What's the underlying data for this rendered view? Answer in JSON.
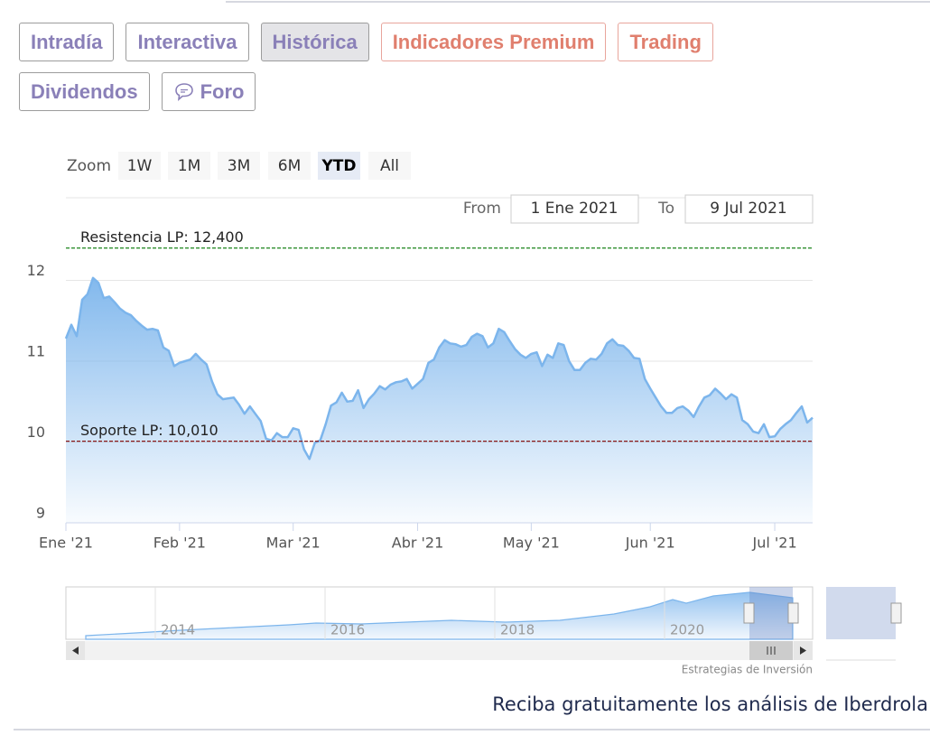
{
  "tabs": [
    {
      "label": "Intradía",
      "variant": "default"
    },
    {
      "label": "Interactiva",
      "variant": "default"
    },
    {
      "label": "Histórica",
      "variant": "active"
    },
    {
      "label": "Indicadores Premium",
      "variant": "premium"
    },
    {
      "label": "Trading",
      "variant": "premium"
    },
    {
      "label": "Dividendos",
      "variant": "default"
    },
    {
      "label": "Foro",
      "variant": "default",
      "icon": "chat"
    }
  ],
  "zoom": {
    "label": "Zoom",
    "buttons": [
      "1W",
      "1M",
      "3M",
      "6M",
      "YTD",
      "All"
    ],
    "selected": 4
  },
  "range": {
    "from_label": "From",
    "from": "1 Ene 2021",
    "to_label": "To",
    "to": "9 Jul 2021"
  },
  "chart_data": {
    "type": "area",
    "categories": [
      "Ene '21",
      null,
      null,
      null,
      null,
      null,
      null,
      null,
      null,
      null,
      null,
      null,
      null,
      null,
      null,
      null,
      null,
      null,
      null,
      null,
      null,
      "Feb '21",
      null,
      null,
      null,
      null,
      null,
      null,
      null,
      null,
      null,
      null,
      null,
      null,
      null,
      null,
      null,
      null,
      null,
      null,
      null,
      null,
      "Mar '21",
      null,
      null,
      null,
      null,
      null,
      null,
      null,
      null,
      null,
      null,
      null,
      null,
      null,
      null,
      null,
      null,
      null,
      null,
      null,
      null,
      null,
      null,
      "Abr '21",
      null,
      null,
      null,
      null,
      null,
      null,
      null,
      null,
      null,
      null,
      null,
      null,
      null,
      null,
      null,
      null,
      null,
      null,
      null,
      null,
      "May '21",
      null,
      null,
      null,
      null,
      null,
      null,
      null,
      null,
      null,
      null,
      null,
      null,
      null,
      null,
      null,
      null,
      null,
      null,
      null,
      null,
      null,
      "Jun '21",
      null,
      null,
      null,
      null,
      null,
      null,
      null,
      null,
      null,
      null,
      null,
      null,
      null,
      null,
      null,
      null,
      null,
      null,
      null,
      null,
      null,
      null,
      "Jul '21",
      null,
      null,
      null,
      null,
      null,
      null,
      null
    ],
    "values": [
      11.28,
      11.45,
      11.31,
      11.76,
      11.83,
      12.03,
      11.97,
      11.78,
      11.8,
      11.73,
      11.65,
      11.6,
      11.57,
      11.5,
      11.44,
      11.39,
      11.4,
      11.38,
      11.17,
      11.13,
      10.94,
      10.98,
      11.0,
      11.02,
      11.09,
      11.02,
      10.96,
      10.75,
      10.59,
      10.53,
      10.54,
      10.55,
      10.46,
      10.35,
      10.44,
      10.35,
      10.26,
      10.04,
      10.02,
      10.11,
      10.06,
      10.06,
      10.17,
      10.15,
      9.91,
      9.79,
      9.99,
      10.02,
      10.22,
      10.45,
      10.49,
      10.61,
      10.5,
      10.51,
      10.64,
      10.42,
      10.53,
      10.6,
      10.69,
      10.65,
      10.71,
      10.74,
      10.75,
      10.78,
      10.66,
      10.72,
      10.78,
      10.98,
      11.02,
      11.17,
      11.26,
      11.22,
      11.21,
      11.18,
      11.2,
      11.3,
      11.34,
      11.31,
      11.17,
      11.22,
      11.4,
      11.36,
      11.25,
      11.15,
      11.08,
      11.04,
      11.09,
      11.11,
      10.94,
      11.08,
      11.04,
      11.22,
      11.2,
      11.0,
      10.89,
      10.89,
      10.98,
      11.03,
      11.02,
      11.09,
      11.22,
      11.27,
      11.2,
      11.19,
      11.13,
      11.04,
      11.03,
      10.78,
      10.66,
      10.55,
      10.44,
      10.36,
      10.36,
      10.42,
      10.44,
      10.39,
      10.31,
      10.44,
      10.55,
      10.58,
      10.66,
      10.6,
      10.53,
      10.59,
      10.55,
      10.27,
      10.22,
      10.13,
      10.11,
      10.22,
      10.06,
      10.07,
      10.16,
      10.22,
      10.27,
      10.36,
      10.44,
      10.24,
      10.3
    ],
    "color": "#7cb5ec",
    "ylim": [
      9,
      13
    ],
    "yticks": [
      9,
      10,
      11,
      12
    ],
    "grid": true,
    "plot_lines": [
      {
        "label": "Resistencia LP: 12,400",
        "value": 12.4,
        "color": "#2f8f2f"
      },
      {
        "label": "Soporte LP: 10,010",
        "value": 10.01,
        "color": "#8b1a1a"
      }
    ],
    "navigator_labels": [
      "2014",
      "2016",
      "2018",
      "2020"
    ],
    "credits": "Estrategias de Inversión"
  },
  "footer": "Reciba gratuitamente los análisis de Iberdrola"
}
